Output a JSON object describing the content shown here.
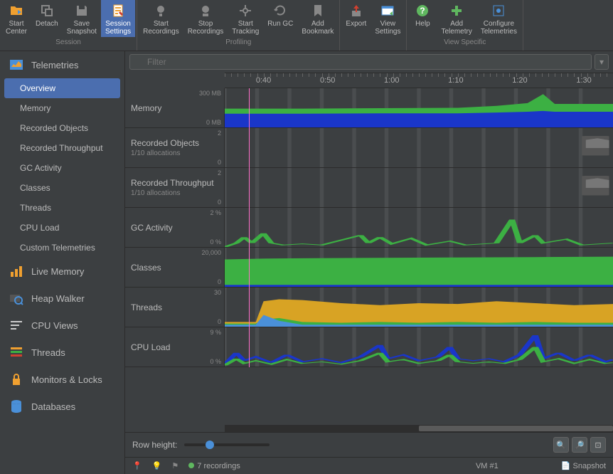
{
  "toolbar": {
    "groups": [
      {
        "label": "Session",
        "buttons": [
          {
            "label": "Start\nCenter",
            "icon": "folder",
            "color": "#f0a030"
          },
          {
            "label": "Detach",
            "icon": "detach",
            "color": "#888"
          },
          {
            "label": "Save\nSnapshot",
            "icon": "save",
            "color": "#888"
          },
          {
            "label": "Session\nSettings",
            "icon": "settings",
            "color": "#f0a030",
            "active": true
          }
        ]
      },
      {
        "label": "Profiling",
        "buttons": [
          {
            "label": "Start\nRecordings",
            "icon": "rec",
            "color": "#888"
          },
          {
            "label": "Stop\nRecordings",
            "icon": "stop",
            "color": "#888"
          },
          {
            "label": "Start\nTracking",
            "icon": "track",
            "color": "#888"
          },
          {
            "label": "Run GC",
            "icon": "gc",
            "color": "#888"
          },
          {
            "label": "Add\nBookmark",
            "icon": "bookmark",
            "color": "#888"
          }
        ]
      },
      {
        "label": "",
        "buttons": [
          {
            "label": "Export",
            "icon": "export",
            "color": "#d04030"
          },
          {
            "label": "View\nSettings",
            "icon": "vsettings",
            "color": "#4a90d9"
          }
        ]
      },
      {
        "label": "View Specific",
        "buttons": [
          {
            "label": "Help",
            "icon": "help",
            "color": "#5fb75f"
          },
          {
            "label": "Add\nTelemetry",
            "icon": "add",
            "color": "#5fb75f"
          },
          {
            "label": "Configure\nTelemetries",
            "icon": "cfg",
            "color": "#4a90d9"
          }
        ]
      }
    ]
  },
  "sidebar": {
    "sections": [
      {
        "title": "Telemetries",
        "icon_color": "#f0a030",
        "items": [
          {
            "label": "Overview",
            "selected": true
          },
          {
            "label": "Memory"
          },
          {
            "label": "Recorded Objects"
          },
          {
            "label": "Recorded Throughput"
          },
          {
            "label": "GC Activity"
          },
          {
            "label": "Classes"
          },
          {
            "label": "Threads"
          },
          {
            "label": "CPU Load"
          },
          {
            "label": "Custom Telemetries"
          }
        ]
      },
      {
        "title": "Live Memory",
        "icon_color": "#f0a030",
        "items": []
      },
      {
        "title": "Heap Walker",
        "icon_color": "#4a90d9",
        "items": []
      },
      {
        "title": "CPU Views",
        "icon_color": "#cccccc",
        "items": []
      },
      {
        "title": "Threads",
        "icon_color": "#f0a030",
        "items": []
      },
      {
        "title": "Monitors & Locks",
        "icon_color": "#f0a030",
        "items": []
      },
      {
        "title": "Databases",
        "icon_color": "#4a90d9",
        "items": []
      }
    ]
  },
  "filter": {
    "placeholder": "Filter"
  },
  "timeline": {
    "labels": [
      "0:40",
      "0:50",
      "1:00",
      "1:10",
      "1:20",
      "1:30"
    ],
    "start_pct": 10,
    "step_pct": 16.5,
    "playhead_pct": 5
  },
  "charts": [
    {
      "name": "Memory",
      "ytop": "300 MB",
      "ybot": "0 MB",
      "type": "stacked_area",
      "series": [
        {
          "color": "#3cb043",
          "points": [
            [
              0,
              0.48
            ],
            [
              20,
              0.48
            ],
            [
              40,
              0.49
            ],
            [
              60,
              0.5
            ],
            [
              70,
              0.55
            ],
            [
              78,
              0.62
            ],
            [
              82,
              0.85
            ],
            [
              85,
              0.6
            ],
            [
              100,
              0.6
            ]
          ]
        },
        {
          "color": "#1a36c9",
          "points": [
            [
              0,
              0.35
            ],
            [
              20,
              0.35
            ],
            [
              40,
              0.36
            ],
            [
              60,
              0.36
            ],
            [
              70,
              0.38
            ],
            [
              78,
              0.4
            ],
            [
              82,
              0.42
            ],
            [
              85,
              0.4
            ],
            [
              100,
              0.4
            ]
          ]
        }
      ]
    },
    {
      "name": "Recorded Objects",
      "sub": "1/10 allocations",
      "ytop": "2",
      "ybot": "0",
      "type": "empty",
      "empty_icon": true
    },
    {
      "name": "Recorded Throughput",
      "sub": "1/10 allocations",
      "ytop": "2",
      "ybot": "0",
      "type": "empty",
      "empty_icon": true
    },
    {
      "name": "GC Activity",
      "ytop": "2 %",
      "ybot": "0 %",
      "type": "line",
      "series": [
        {
          "color": "#3cb043",
          "points": [
            [
              0,
              0
            ],
            [
              3,
              0.1
            ],
            [
              5,
              0.25
            ],
            [
              7,
              0.1
            ],
            [
              10,
              0.35
            ],
            [
              12,
              0.1
            ],
            [
              15,
              0.05
            ],
            [
              20,
              0.08
            ],
            [
              25,
              0.05
            ],
            [
              35,
              0.3
            ],
            [
              37,
              0.1
            ],
            [
              40,
              0.25
            ],
            [
              43,
              0.08
            ],
            [
              48,
              0.22
            ],
            [
              52,
              0.05
            ],
            [
              58,
              0.15
            ],
            [
              62,
              0.05
            ],
            [
              70,
              0.1
            ],
            [
              74,
              0.7
            ],
            [
              76,
              0.1
            ],
            [
              80,
              0.3
            ],
            [
              82,
              0.1
            ],
            [
              88,
              0.2
            ],
            [
              92,
              0.05
            ],
            [
              100,
              0.1
            ]
          ]
        }
      ]
    },
    {
      "name": "Classes",
      "ytop": "20,000",
      "ybot": "0",
      "type": "stacked_area",
      "series": [
        {
          "color": "#3cb043",
          "points": [
            [
              0,
              0.7
            ],
            [
              10,
              0.72
            ],
            [
              20,
              0.73
            ],
            [
              40,
              0.74
            ],
            [
              60,
              0.75
            ],
            [
              80,
              0.76
            ],
            [
              100,
              0.77
            ]
          ]
        },
        {
          "color": "#1a36c9",
          "points": [
            [
              0,
              0.05
            ],
            [
              100,
              0.05
            ]
          ]
        }
      ]
    },
    {
      "name": "Threads",
      "ytop": "30",
      "ybot": "0",
      "type": "stacked_area",
      "series": [
        {
          "color": "#d8a324",
          "points": [
            [
              0,
              0.12
            ],
            [
              8,
              0.12
            ],
            [
              10,
              0.65
            ],
            [
              14,
              0.7
            ],
            [
              20,
              0.68
            ],
            [
              30,
              0.6
            ],
            [
              40,
              0.55
            ],
            [
              50,
              0.6
            ],
            [
              60,
              0.58
            ],
            [
              70,
              0.65
            ],
            [
              80,
              0.6
            ],
            [
              90,
              0.55
            ],
            [
              100,
              0.58
            ]
          ]
        },
        {
          "color": "#3cb043",
          "points": [
            [
              0,
              0.08
            ],
            [
              8,
              0.08
            ],
            [
              10,
              0.18
            ],
            [
              14,
              0.22
            ],
            [
              20,
              0.12
            ],
            [
              30,
              0.1
            ],
            [
              40,
              0.12
            ],
            [
              50,
              0.1
            ],
            [
              60,
              0.12
            ],
            [
              70,
              0.1
            ],
            [
              80,
              0.12
            ],
            [
              90,
              0.1
            ],
            [
              100,
              0.1
            ]
          ]
        },
        {
          "color": "#4a90d9",
          "points": [
            [
              0,
              0.05
            ],
            [
              8,
              0.05
            ],
            [
              10,
              0.3
            ],
            [
              14,
              0.15
            ],
            [
              20,
              0.05
            ],
            [
              100,
              0.05
            ]
          ]
        }
      ]
    },
    {
      "name": "CPU Load",
      "ytop": "9 %",
      "ybot": "0 %",
      "type": "line_multi",
      "series": [
        {
          "color": "#1a36c9",
          "points": [
            [
              0,
              0.05
            ],
            [
              3,
              0.35
            ],
            [
              5,
              0.15
            ],
            [
              8,
              0.25
            ],
            [
              12,
              0.1
            ],
            [
              16,
              0.3
            ],
            [
              20,
              0.12
            ],
            [
              25,
              0.2
            ],
            [
              30,
              0.1
            ],
            [
              35,
              0.25
            ],
            [
              40,
              0.55
            ],
            [
              42,
              0.2
            ],
            [
              46,
              0.3
            ],
            [
              50,
              0.15
            ],
            [
              55,
              0.25
            ],
            [
              58,
              0.5
            ],
            [
              60,
              0.2
            ],
            [
              64,
              0.15
            ],
            [
              68,
              0.2
            ],
            [
              72,
              0.12
            ],
            [
              76,
              0.3
            ],
            [
              80,
              0.8
            ],
            [
              82,
              0.2
            ],
            [
              86,
              0.35
            ],
            [
              90,
              0.15
            ],
            [
              94,
              0.3
            ],
            [
              98,
              0.12
            ],
            [
              100,
              0.18
            ]
          ]
        },
        {
          "color": "#3cb043",
          "points": [
            [
              0,
              0.03
            ],
            [
              3,
              0.2
            ],
            [
              5,
              0.08
            ],
            [
              8,
              0.15
            ],
            [
              12,
              0.06
            ],
            [
              16,
              0.18
            ],
            [
              20,
              0.08
            ],
            [
              25,
              0.12
            ],
            [
              30,
              0.06
            ],
            [
              35,
              0.15
            ],
            [
              40,
              0.35
            ],
            [
              42,
              0.12
            ],
            [
              46,
              0.18
            ],
            [
              50,
              0.08
            ],
            [
              55,
              0.15
            ],
            [
              58,
              0.3
            ],
            [
              60,
              0.12
            ],
            [
              64,
              0.08
            ],
            [
              68,
              0.12
            ],
            [
              72,
              0.08
            ],
            [
              76,
              0.18
            ],
            [
              80,
              0.5
            ],
            [
              82,
              0.12
            ],
            [
              86,
              0.2
            ],
            [
              90,
              0.08
            ],
            [
              94,
              0.18
            ],
            [
              98,
              0.08
            ],
            [
              100,
              0.1
            ]
          ]
        }
      ]
    }
  ],
  "footer": {
    "row_height_label": "Row height:",
    "slider_pct": 30
  },
  "status": {
    "recordings": "7 recordings",
    "vm": "VM #1",
    "snapshot": "Snapshot"
  },
  "hscroll": {
    "left_pct": 50,
    "width_pct": 50
  },
  "colors": {
    "bg": "#3c3f41",
    "grid": "#4a4d4f",
    "playhead": "#ff6ec7"
  }
}
